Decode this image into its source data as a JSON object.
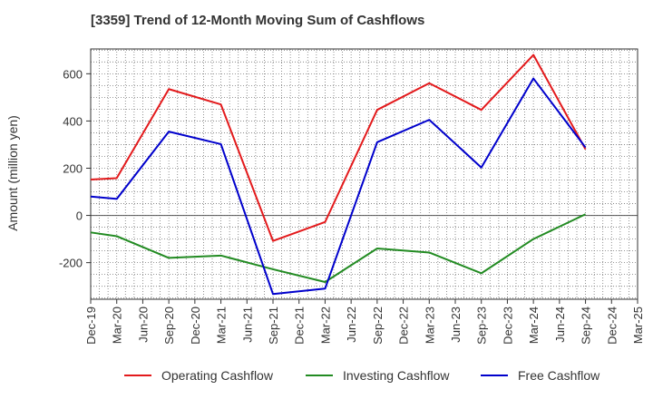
{
  "chart_data": {
    "type": "line",
    "title": "[3359]  Trend of 12-Month Moving Sum of Cashflows",
    "xlabel": "",
    "ylabel": "Amount (million yen)",
    "categories": [
      "Dec-19",
      "Mar-20",
      "Jun-20",
      "Sep-20",
      "Dec-20",
      "Mar-21",
      "Jun-21",
      "Sep-21",
      "Dec-21",
      "Mar-22",
      "Jun-22",
      "Sep-22",
      "Dec-22",
      "Mar-23",
      "Jun-23",
      "Sep-23",
      "Dec-23",
      "Mar-24",
      "Jun-24",
      "Sep-24",
      "Dec-24",
      "Mar-25"
    ],
    "yticks": [
      -200,
      0,
      200,
      400,
      600
    ],
    "ylim": [
      -355,
      705
    ],
    "grid": true,
    "legend_position": "bottom",
    "series": [
      {
        "name": "Operating Cashflow",
        "color": "#e31a1c",
        "points": [
          [
            "Dec-19",
            152
          ],
          [
            "Mar-20",
            158
          ],
          [
            "Sep-20",
            535
          ],
          [
            "Mar-21",
            470
          ],
          [
            "Sep-21",
            -108
          ],
          [
            "Mar-22",
            -28
          ],
          [
            "Sep-22",
            447
          ],
          [
            "Mar-23",
            560
          ],
          [
            "Sep-23",
            447
          ],
          [
            "Mar-24",
            680
          ],
          [
            "Sep-24",
            280
          ]
        ]
      },
      {
        "name": "Investing Cashflow",
        "color": "#228b22",
        "points": [
          [
            "Dec-19",
            -72
          ],
          [
            "Mar-20",
            -88
          ],
          [
            "Sep-20",
            -180
          ],
          [
            "Mar-21",
            -170
          ],
          [
            "Sep-21",
            -228
          ],
          [
            "Mar-22",
            -282
          ],
          [
            "Sep-22",
            -140
          ],
          [
            "Mar-23",
            -157
          ],
          [
            "Sep-23",
            -245
          ],
          [
            "Mar-24",
            -100
          ],
          [
            "Sep-24",
            5
          ]
        ]
      },
      {
        "name": "Free Cashflow",
        "color": "#0000cc",
        "points": [
          [
            "Dec-19",
            80
          ],
          [
            "Mar-20",
            70
          ],
          [
            "Sep-20",
            355
          ],
          [
            "Mar-21",
            302
          ],
          [
            "Sep-21",
            -333
          ],
          [
            "Mar-22",
            -310
          ],
          [
            "Sep-22",
            310
          ],
          [
            "Mar-23",
            405
          ],
          [
            "Sep-23",
            203
          ],
          [
            "Mar-24",
            580
          ],
          [
            "Sep-24",
            288
          ]
        ]
      }
    ]
  }
}
